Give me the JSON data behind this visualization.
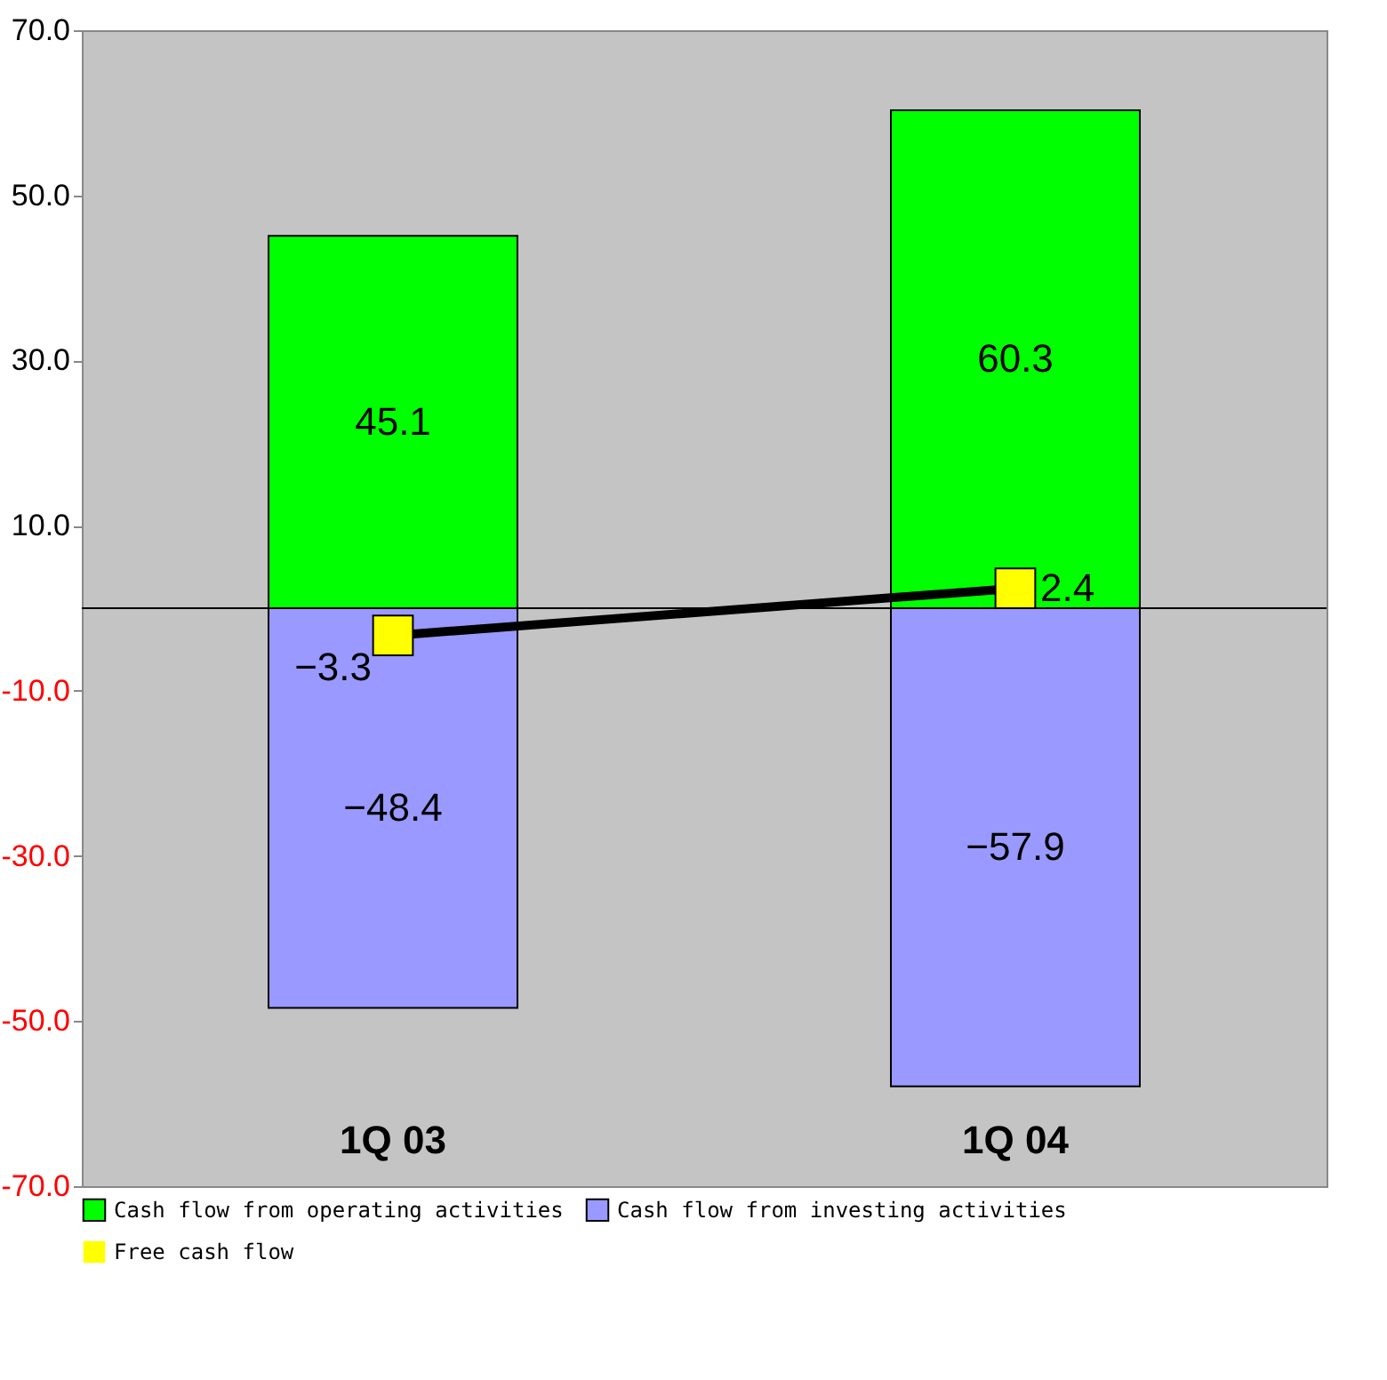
{
  "chart_data": {
    "type": "bar",
    "stacked": true,
    "categories": [
      "1Q 03",
      "1Q 04"
    ],
    "series": [
      {
        "name": "Cash flow from operating activities",
        "color": "#00ff00",
        "values": [
          45.1,
          60.3
        ]
      },
      {
        "name": "Cash flow from investing activities",
        "color": "#9999ff",
        "values": [
          -48.4,
          -57.9
        ]
      },
      {
        "name": "Free cash flow",
        "type": "line",
        "color": "#000000",
        "values": [
          -3.3,
          2.4
        ]
      }
    ],
    "ylim": [
      -70,
      70
    ],
    "yticks": [
      {
        "value": -70,
        "label": "-70.0"
      },
      {
        "value": -50,
        "label": "-50.0"
      },
      {
        "value": -30,
        "label": "-30.0"
      },
      {
        "value": -10,
        "label": "-10.0"
      },
      {
        "value": 10,
        "label": "10.0"
      },
      {
        "value": 30,
        "label": "30.0"
      },
      {
        "value": 50,
        "label": "50.0"
      },
      {
        "value": 70,
        "label": "70.0"
      }
    ],
    "ref_lines": [
      {
        "axis": "y",
        "value": 0,
        "color": "#000000"
      }
    ],
    "data_labels": true,
    "grid": false,
    "legend": "bottom",
    "marker": "square",
    "line_style": "solid"
  }
}
